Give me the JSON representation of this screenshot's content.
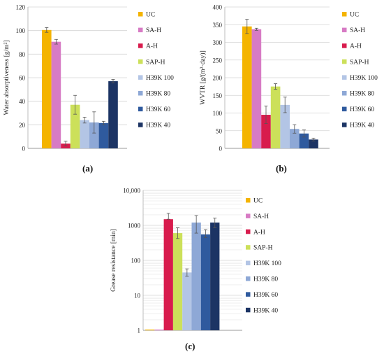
{
  "chart_data": [
    {
      "type": "bar",
      "panel_label": "(a)",
      "ylabel": "Water absorptiveness [g/m²]",
      "ylim": [
        0,
        120
      ],
      "yticks": [
        0,
        20,
        40,
        60,
        80,
        100,
        120
      ],
      "scale": "linear",
      "grid": true,
      "legend_position": "right",
      "series": [
        {
          "name": "UC",
          "value": 100.5,
          "error": 2.0,
          "color": "#F4B400"
        },
        {
          "name": "SA-H",
          "value": 90.5,
          "error": 2.0,
          "color": "#D77BC4"
        },
        {
          "name": "A-H",
          "value": 4,
          "error": 2.0,
          "color": "#D81B4D"
        },
        {
          "name": "SAP-H",
          "value": 37,
          "error": 8.0,
          "color": "#CCE05A"
        },
        {
          "name": "H39K 100",
          "value": 24,
          "error": 2.5,
          "color": "#B3C5E5"
        },
        {
          "name": "H39K 80",
          "value": 22,
          "error": 9.0,
          "color": "#8EA8D6"
        },
        {
          "name": "H39K 60",
          "value": 21.5,
          "error": 1.5,
          "color": "#2F5A9E"
        },
        {
          "name": "H39K 40",
          "value": 57,
          "error": 1.5,
          "color": "#1C3464"
        }
      ]
    },
    {
      "type": "bar",
      "panel_label": "(b)",
      "ylabel": "WVTR [g/(m²·day)]",
      "ylim": [
        0,
        400
      ],
      "yticks": [
        0,
        50,
        100,
        150,
        200,
        250,
        300,
        350,
        400
      ],
      "scale": "linear",
      "grid": true,
      "legend_position": "right",
      "series": [
        {
          "name": "UC",
          "value": 345,
          "error": 20,
          "color": "#F4B400"
        },
        {
          "name": "SA-H",
          "value": 337,
          "error": 3,
          "color": "#D77BC4"
        },
        {
          "name": "A-H",
          "value": 95,
          "error": 25,
          "color": "#D81B4D"
        },
        {
          "name": "SAP-H",
          "value": 175,
          "error": 8,
          "color": "#CCE05A"
        },
        {
          "name": "H39K 100",
          "value": 123,
          "error": 22,
          "color": "#B3C5E5"
        },
        {
          "name": "H39K 80",
          "value": 55,
          "error": 12,
          "color": "#8EA8D6"
        },
        {
          "name": "H39K 60",
          "value": 42,
          "error": 10,
          "color": "#2F5A9E"
        },
        {
          "name": "H39K 40",
          "value": 25,
          "error": 4,
          "color": "#1C3464"
        }
      ]
    },
    {
      "type": "bar",
      "panel_label": "(c)",
      "ylabel": "Grease resistance [min]",
      "ylim": [
        1,
        10000
      ],
      "yticks": [
        1,
        10,
        100,
        1000,
        10000
      ],
      "ytick_labels": [
        "1",
        "10",
        "100",
        "1000",
        "10,000"
      ],
      "scale": "log",
      "grid": true,
      "legend_position": "right",
      "series": [
        {
          "name": "UC",
          "value": 1,
          "err_low": 1,
          "err_high": 1,
          "color": "#F4B400"
        },
        {
          "name": "SA-H",
          "value": 1,
          "err_low": 1,
          "err_high": 1,
          "color": "#D77BC4"
        },
        {
          "name": "A-H",
          "value": 1500,
          "err_low": 1500,
          "err_high": 2200,
          "color": "#D81B4D"
        },
        {
          "name": "SAP-H",
          "value": 600,
          "err_low": 420,
          "err_high": 850,
          "color": "#CCE05A"
        },
        {
          "name": "H39K 100",
          "value": 45,
          "err_low": 35,
          "err_high": 57,
          "color": "#B3C5E5"
        },
        {
          "name": "H39K 80",
          "value": 1200,
          "err_low": 600,
          "err_high": 1900,
          "color": "#8EA8D6"
        },
        {
          "name": "H39K 60",
          "value": 550,
          "err_low": 450,
          "err_high": 750,
          "color": "#2F5A9E"
        },
        {
          "name": "H39K 40",
          "value": 1200,
          "err_low": 850,
          "err_high": 1600,
          "color": "#1C3464"
        }
      ]
    }
  ]
}
